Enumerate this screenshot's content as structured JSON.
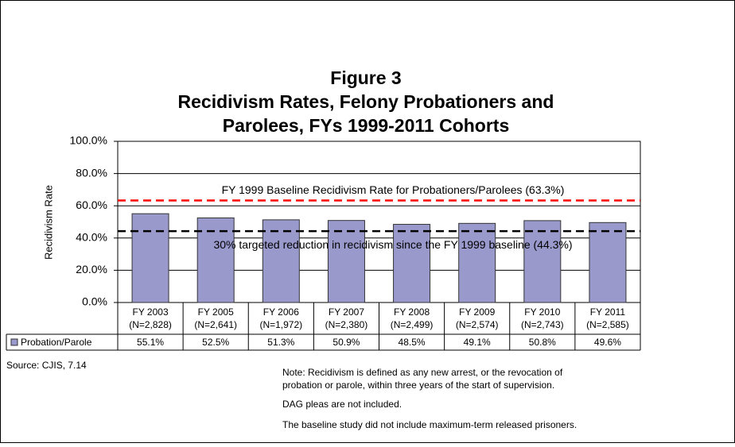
{
  "chart_data": {
    "type": "bar",
    "title": [
      "Figure 3",
      "Recidivism Rates, Felony Probationers and",
      "Parolees, FYs 1999-2011 Cohorts"
    ],
    "y_label": "Recidivism Rate",
    "categories": [
      "FY 2003",
      "FY 2005",
      "FY 2006",
      "FY 2007",
      "FY 2008",
      "FY 2009",
      "FY 2010",
      "FY 2011"
    ],
    "category_counts": [
      "(N=2,828)",
      "(N=2,641)",
      "(N=1,972)",
      "(N=2,380)",
      "(N=2,499)",
      "(N=2,574)",
      "(N=2,743)",
      "(N=2,585)"
    ],
    "series": [
      {
        "name": "Probation/Parole",
        "color": "#9999cc",
        "values": [
          55.1,
          52.5,
          51.3,
          50.9,
          48.5,
          49.1,
          50.8,
          49.6
        ],
        "value_labels": [
          "55.1%",
          "52.5%",
          "51.3%",
          "50.9%",
          "48.5%",
          "49.1%",
          "50.8%",
          "49.6%"
        ]
      }
    ],
    "ylim": [
      0,
      100
    ],
    "yticks": [
      {
        "value": 0,
        "label": "0.0%"
      },
      {
        "value": 20,
        "label": "20.0%"
      },
      {
        "value": 40,
        "label": "40.0%"
      },
      {
        "value": 60,
        "label": "60.0%"
      },
      {
        "value": 80,
        "label": "80.0%"
      },
      {
        "value": 100,
        "label": "100.0%"
      }
    ],
    "grid": true,
    "reference_lines": [
      {
        "value": 63.3,
        "label": "FY 1999 Baseline Recidivism Rate for Probationers/Parolees (63.3%)",
        "color": "#ff0000"
      },
      {
        "value": 44.3,
        "label": "30% targeted reduction in recidivism since the FY 1999 baseline (44.3%)",
        "color": "#000000"
      }
    ],
    "source": "Source: CJIS, 7.14",
    "notes": [
      "Note: Recidivism is defined as any new arrest, or the revocation of",
      "probation or parole, within three years of the start of supervision.",
      "DAG pleas are not included.",
      "The baseline study did not include maximum-term released prisoners."
    ]
  }
}
